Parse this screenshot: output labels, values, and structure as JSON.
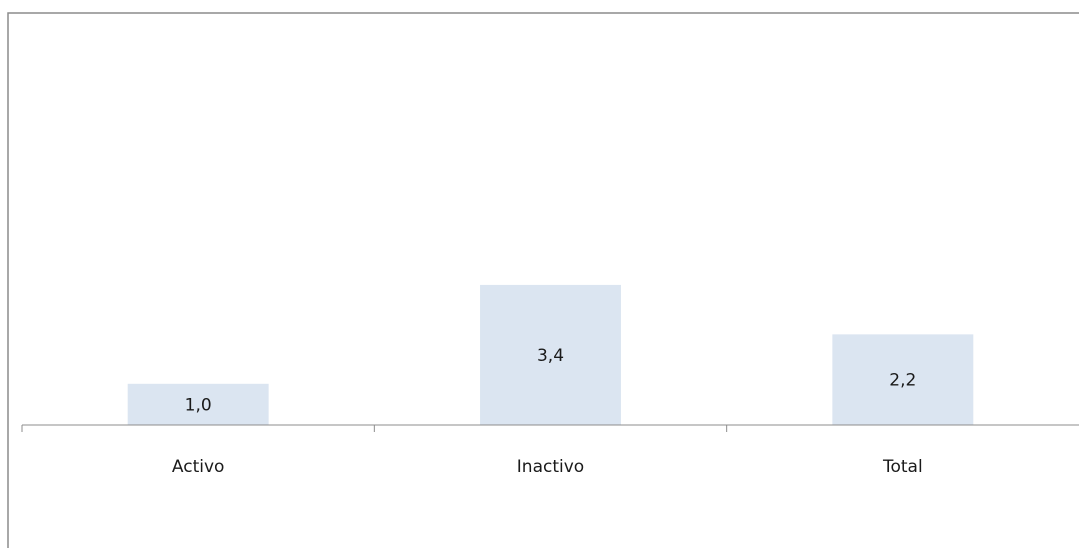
{
  "chart_data": {
    "type": "bar",
    "categories": [
      "Activo",
      "Inactivo",
      "Total"
    ],
    "values": [
      1.0,
      3.4,
      2.2
    ],
    "data_labels": [
      "1,0",
      "3,4",
      "2,2"
    ],
    "title": "",
    "xlabel": "",
    "ylabel": "",
    "ylim": [
      0,
      10
    ],
    "grid": false,
    "legend": "none",
    "colors": {
      "bar": "#dbe5f1",
      "axis": "#8c8c8c",
      "text": "#1a1a1a"
    }
  }
}
